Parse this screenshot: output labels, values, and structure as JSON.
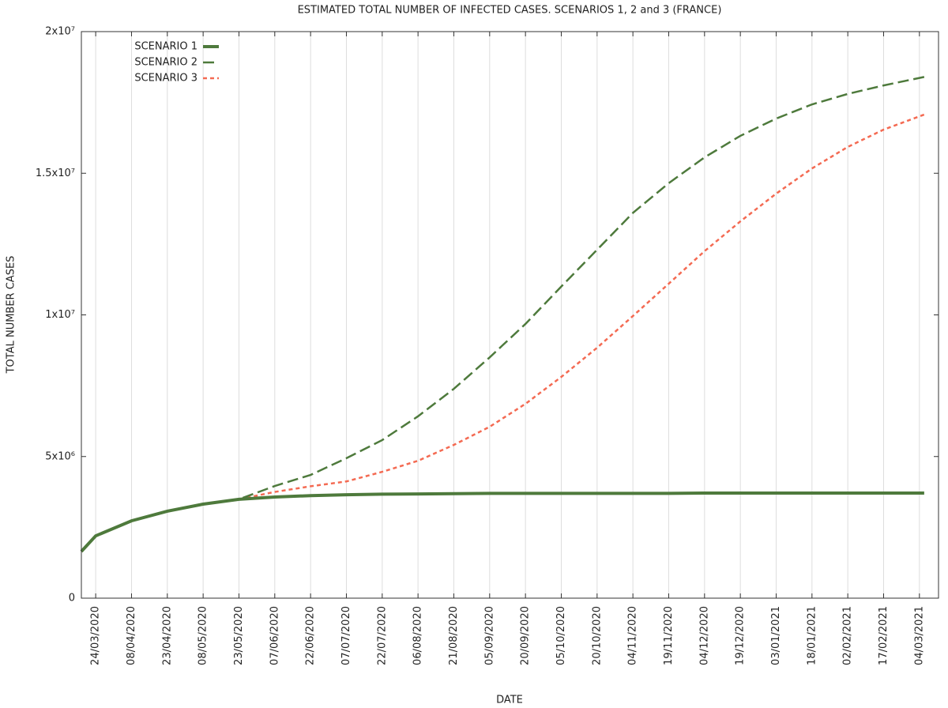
{
  "chart_data": {
    "type": "line",
    "title": "ESTIMATED TOTAL NUMBER OF INFECTED CASES. SCENARIOS 1, 2 and 3 (FRANCE)",
    "xlabel": "DATE",
    "ylabel": "TOTAL NUMBER CASES",
    "x": [
      "18/03/2020",
      "24/03/2020",
      "08/04/2020",
      "23/04/2020",
      "08/05/2020",
      "23/05/2020",
      "07/06/2020",
      "22/06/2020",
      "07/07/2020",
      "22/07/2020",
      "06/08/2020",
      "21/08/2020",
      "05/09/2020",
      "20/09/2020",
      "05/10/2020",
      "20/10/2020",
      "04/11/2020",
      "19/11/2020",
      "04/12/2020",
      "19/12/2020",
      "03/01/2021",
      "18/01/2021",
      "02/02/2021",
      "17/02/2021",
      "06/03/2021"
    ],
    "xlim": [
      "18/03/2020",
      "12/03/2021"
    ],
    "xticks": [
      "24/03/2020",
      "08/04/2020",
      "23/04/2020",
      "08/05/2020",
      "23/05/2020",
      "07/06/2020",
      "22/06/2020",
      "07/07/2020",
      "22/07/2020",
      "06/08/2020",
      "21/08/2020",
      "05/09/2020",
      "20/09/2020",
      "05/10/2020",
      "20/10/2020",
      "04/11/2020",
      "19/11/2020",
      "04/12/2020",
      "19/12/2020",
      "03/01/2021",
      "18/01/2021",
      "02/02/2021",
      "17/02/2021",
      "04/03/2021"
    ],
    "ylim": [
      0,
      20000000
    ],
    "yticks": [
      0,
      {
        "value": 5000000,
        "label": "5x10⁶"
      },
      {
        "value": 10000000,
        "label": "1x10⁷"
      },
      {
        "value": 15000000,
        "label": "1.5x10⁷"
      },
      {
        "value": 20000000,
        "label": "2x10⁷"
      }
    ],
    "grid": "x",
    "legend": "upper-left",
    "series": [
      {
        "name": "SCENARIO 3",
        "color": "#f46a52",
        "dash": "dotted",
        "values": [
          1650000,
          2200000,
          2730000,
          3070000,
          3320000,
          3490000,
          3750000,
          3950000,
          4120000,
          4460000,
          4850000,
          5410000,
          6050000,
          6860000,
          7810000,
          8840000,
          9960000,
          11100000,
          12250000,
          13300000,
          14280000,
          15170000,
          15930000,
          16540000,
          17070000
        ]
      },
      {
        "name": "SCENARIO 2",
        "color": "#4e7a3c",
        "dash": "dashed",
        "values": [
          1650000,
          2200000,
          2730000,
          3070000,
          3320000,
          3490000,
          3960000,
          4350000,
          4940000,
          5580000,
          6420000,
          7390000,
          8500000,
          9680000,
          11000000,
          12300000,
          13600000,
          14650000,
          15560000,
          16320000,
          16930000,
          17430000,
          17800000,
          18100000,
          18400000
        ]
      },
      {
        "name": "SCENARIO 1",
        "color": "#4e7a3c",
        "dash": "solid",
        "values": [
          1650000,
          2200000,
          2730000,
          3070000,
          3320000,
          3490000,
          3570000,
          3620000,
          3650000,
          3670000,
          3680000,
          3690000,
          3700000,
          3700000,
          3700000,
          3700000,
          3700000,
          3700000,
          3710000,
          3710000,
          3710000,
          3710000,
          3710000,
          3710000,
          3710000
        ]
      }
    ]
  }
}
